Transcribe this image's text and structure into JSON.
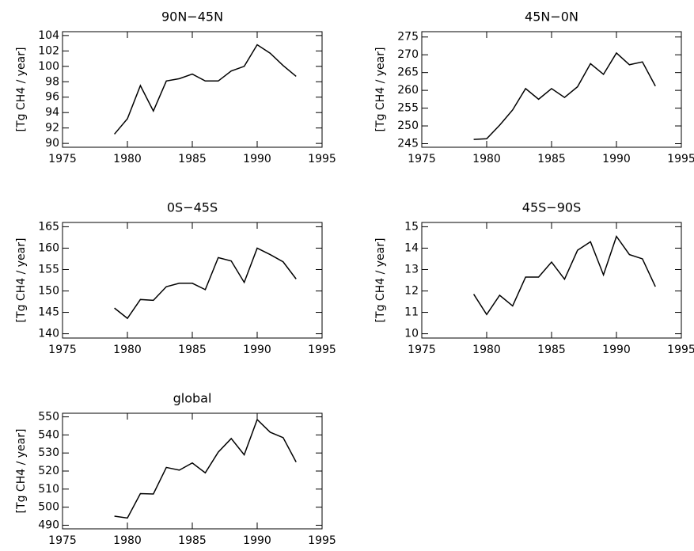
{
  "chart_data": [
    {
      "type": "line",
      "title": "90N−45N",
      "ylabel": "[Tg CH4 / year]",
      "x": [
        1979,
        1980,
        1981,
        1982,
        1983,
        1984,
        1985,
        1986,
        1987,
        1988,
        1989,
        1990,
        1991,
        1992,
        1993
      ],
      "values": [
        91.2,
        93.2,
        97.5,
        94.2,
        98.1,
        98.4,
        99.0,
        98.1,
        98.1,
        99.4,
        100.0,
        102.8,
        101.7,
        100.1,
        98.7
      ],
      "color": "#000000",
      "xlim": [
        1975,
        1995
      ],
      "xticks": [
        1975,
        1980,
        1985,
        1990,
        1995
      ],
      "ylim": [
        89.5,
        104.5
      ],
      "yticks": [
        90,
        92,
        94,
        96,
        98,
        100,
        102,
        104
      ]
    },
    {
      "type": "line",
      "title": "45N−0N",
      "ylabel": "[Tg CH4 / year]",
      "x": [
        1979,
        1980,
        1981,
        1982,
        1983,
        1984,
        1985,
        1986,
        1987,
        1988,
        1989,
        1990,
        1991,
        1992,
        1993
      ],
      "values": [
        246.2,
        246.4,
        250.2,
        254.5,
        260.5,
        257.5,
        260.5,
        258.0,
        261.0,
        267.5,
        264.5,
        270.5,
        267.2,
        268.0,
        261.2
      ],
      "color": "#000000",
      "xlim": [
        1975,
        1995
      ],
      "xticks": [
        1975,
        1980,
        1985,
        1990,
        1995
      ],
      "ylim": [
        244,
        276.5
      ],
      "yticks": [
        245,
        250,
        255,
        260,
        265,
        270,
        275
      ]
    },
    {
      "type": "line",
      "title": "0S−45S",
      "ylabel": "[Tg CH4 / year]",
      "x": [
        1979,
        1980,
        1981,
        1982,
        1983,
        1984,
        1985,
        1986,
        1987,
        1988,
        1989,
        1990,
        1991,
        1992,
        1993
      ],
      "values": [
        146.0,
        143.6,
        148.0,
        147.8,
        151.0,
        151.8,
        151.8,
        150.3,
        157.8,
        157.0,
        152.0,
        160.0,
        158.5,
        156.8,
        152.8
      ],
      "color": "#000000",
      "xlim": [
        1975,
        1995
      ],
      "xticks": [
        1975,
        1980,
        1985,
        1990,
        1995
      ],
      "ylim": [
        139,
        166
      ],
      "yticks": [
        140,
        145,
        150,
        155,
        160,
        165
      ]
    },
    {
      "type": "line",
      "title": "45S−90S",
      "ylabel": "[Tg CH4 / year]",
      "x": [
        1979,
        1980,
        1981,
        1982,
        1983,
        1984,
        1985,
        1986,
        1987,
        1988,
        1989,
        1990,
        1991,
        1992,
        1993
      ],
      "values": [
        11.85,
        10.9,
        11.8,
        11.3,
        12.65,
        12.65,
        13.35,
        12.55,
        13.9,
        14.3,
        12.75,
        14.55,
        13.7,
        13.5,
        12.2
      ],
      "color": "#000000",
      "xlim": [
        1975,
        1995
      ],
      "xticks": [
        1975,
        1980,
        1985,
        1990,
        1995
      ],
      "ylim": [
        9.8,
        15.2
      ],
      "yticks": [
        10,
        11,
        12,
        13,
        14,
        15
      ]
    },
    {
      "type": "line",
      "title": "global",
      "ylabel": "[Tg CH4 / year]",
      "x": [
        1979,
        1980,
        1981,
        1982,
        1983,
        1984,
        1985,
        1986,
        1987,
        1988,
        1989,
        1990,
        1991,
        1992,
        1993
      ],
      "values": [
        495,
        494,
        507.5,
        507.3,
        522,
        520.5,
        524.5,
        519,
        530.5,
        538,
        529,
        548.5,
        541.5,
        538.5,
        525
      ],
      "color": "#000000",
      "xlim": [
        1975,
        1995
      ],
      "xticks": [
        1975,
        1980,
        1985,
        1990,
        1995
      ],
      "ylim": [
        488,
        552
      ],
      "yticks": [
        490,
        500,
        510,
        520,
        530,
        540,
        550
      ]
    }
  ]
}
